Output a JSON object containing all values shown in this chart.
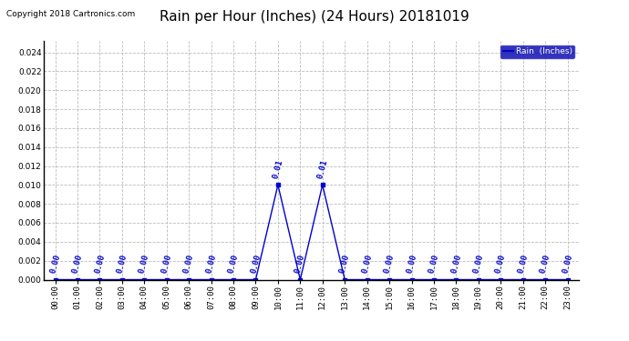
{
  "title": "Rain per Hour (Inches) (24 Hours) 20181019",
  "copyright": "Copyright 2018 Cartronics.com",
  "legend_label": "Rain  (Inches)",
  "ylim": [
    0,
    0.0252
  ],
  "yticks": [
    0.0,
    0.002,
    0.004,
    0.006,
    0.008,
    0.01,
    0.012,
    0.014,
    0.016,
    0.018,
    0.02,
    0.022,
    0.024
  ],
  "hours": [
    0,
    1,
    2,
    3,
    4,
    5,
    6,
    7,
    8,
    9,
    10,
    11,
    12,
    13,
    14,
    15,
    16,
    17,
    18,
    19,
    20,
    21,
    22,
    23
  ],
  "values": [
    0.0,
    0.0,
    0.0,
    0.0,
    0.0,
    0.0,
    0.0,
    0.0,
    0.0,
    0.0,
    0.01,
    0.0,
    0.01,
    0.0,
    0.0,
    0.0,
    0.0,
    0.0,
    0.0,
    0.0,
    0.0,
    0.0,
    0.0,
    0.0
  ],
  "line_color": "#0000cc",
  "marker": "s",
  "marker_size": 2.5,
  "grid_color": "#bbbbbb",
  "bg_color": "#ffffff",
  "title_fontsize": 11,
  "tick_fontsize": 6.5,
  "annotation_fontsize": 6.5,
  "legend_bg": "#0000aa",
  "legend_fg": "#ffffff",
  "copyright_fontsize": 6.5
}
